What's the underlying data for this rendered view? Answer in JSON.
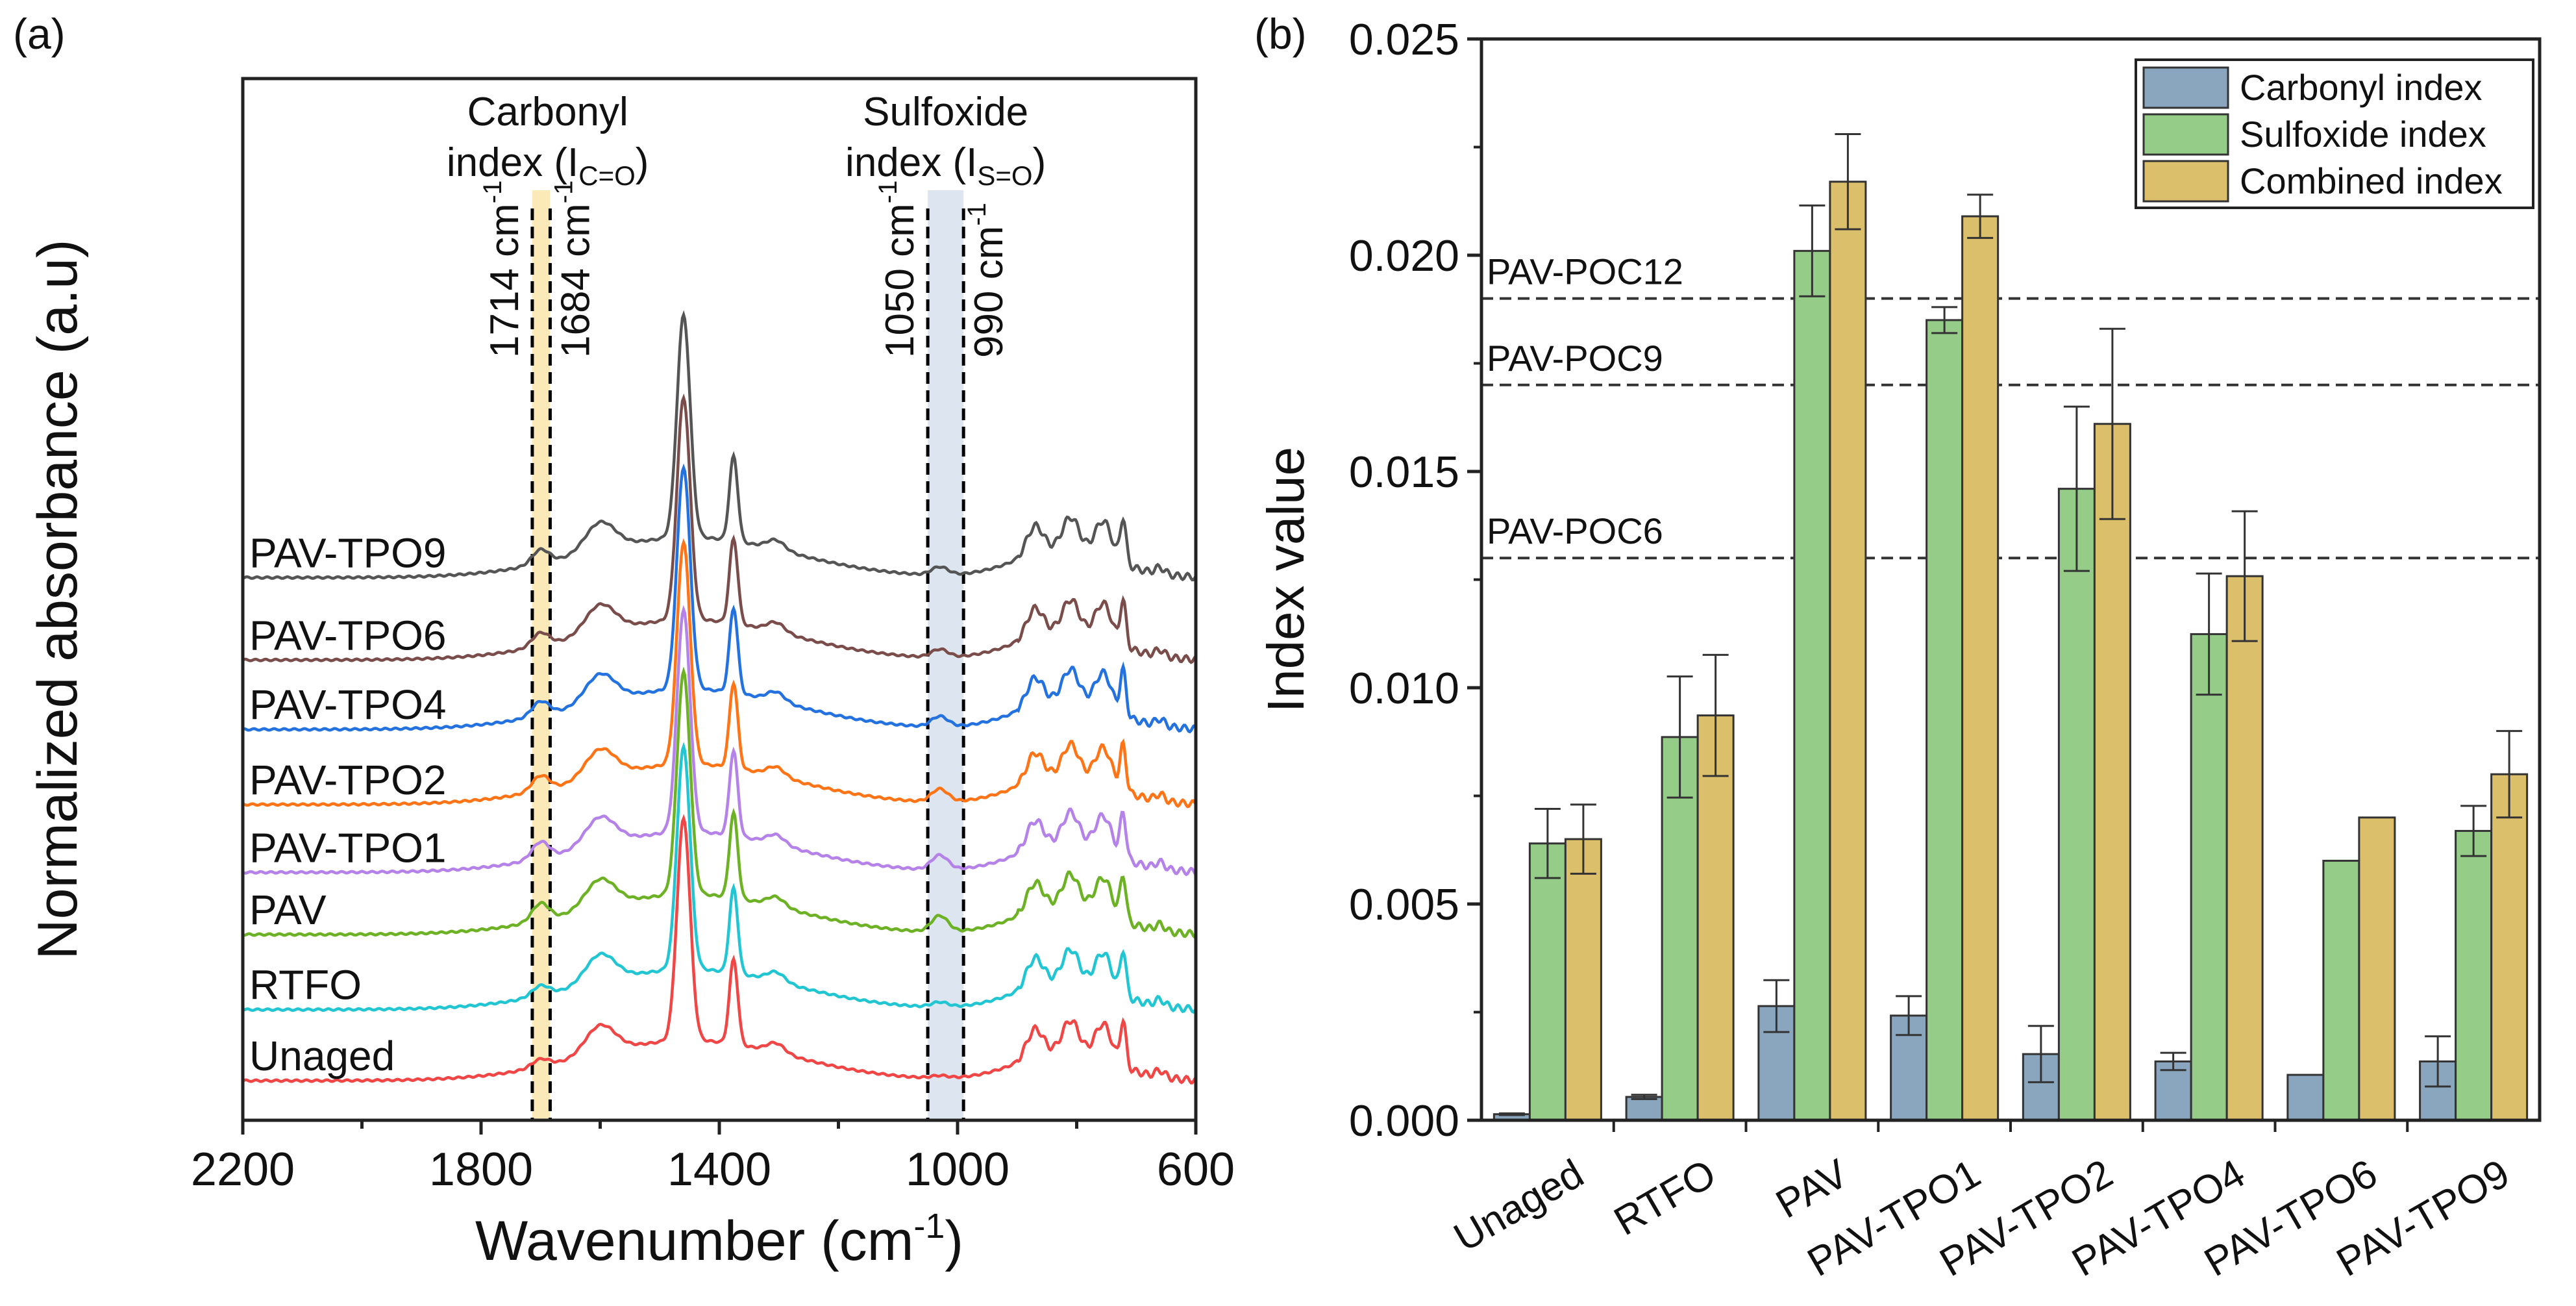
{
  "chart_data": [
    {
      "panel": "(a)",
      "type": "line",
      "xlabel": "Wavenumber (cm",
      "xlabel_sup": "-1",
      "xlabel_end": ")",
      "ylabel": "Normalized absorbance (a.u)",
      "xlim": [
        2200,
        600
      ],
      "ylim": [
        0,
        12.9
      ],
      "xticks": [
        2200,
        1800,
        1400,
        1000,
        600
      ],
      "xminor": [
        2000,
        1600,
        1200,
        800
      ],
      "bands": [
        {
          "name": "Carbonyl",
          "title1": "Carbonyl",
          "title2": "index (I",
          "sub": "C=O",
          "from": 1714,
          "to": 1684,
          "color": "#fbe9b8",
          "lines": [
            {
              "x": 1714,
              "label": "1714 cm",
              "sup": "-1"
            },
            {
              "x": 1684,
              "label": "1684 cm",
              "sup": "-1"
            }
          ]
        },
        {
          "name": "Sulfoxide",
          "title1": "Sulfoxide",
          "title2": "index (I",
          "sub": "S=O",
          "from": 1050,
          "to": 990,
          "color": "#dde6f0",
          "lines": [
            {
              "x": 1050,
              "label": "1050 cm",
              "sup": "-1"
            },
            {
              "x": 990,
              "label": "990 cm",
              "sup": "-1"
            }
          ]
        }
      ],
      "base_peaks": [
        [
          1700,
          0.1,
          15
        ],
        [
          1600,
          0.35,
          25
        ],
        [
          1460,
          2.75,
          11
        ],
        [
          1376,
          1.05,
          7
        ],
        [
          1305,
          0.12,
          15
        ],
        [
          870,
          0.35,
          14
        ],
        [
          810,
          0.4,
          14
        ],
        [
          755,
          0.45,
          14
        ],
        [
          722,
          0.55,
          5
        ],
        [
          660,
          0.08,
          8
        ],
        [
          1450,
          0.5,
          170
        ],
        [
          820,
          0.35,
          80
        ]
      ],
      "series": [
        {
          "name": "Unaged",
          "offset": 0.49,
          "carbonyl": 0.0,
          "sulfoxide": 0.03,
          "color": "#f04646"
        },
        {
          "name": "RTFO",
          "offset": 1.37,
          "carbonyl": 0.03,
          "sulfoxide": 0.06,
          "color": "#22c6d2"
        },
        {
          "name": "PAV",
          "offset": 2.3,
          "carbonyl": 0.12,
          "sulfoxide": 0.2,
          "color": "#6cb224"
        },
        {
          "name": "PAV-TPO1",
          "offset": 3.07,
          "carbonyl": 0.11,
          "sulfoxide": 0.18,
          "color": "#b482e8"
        },
        {
          "name": "PAV-TPO2",
          "offset": 3.91,
          "carbonyl": 0.09,
          "sulfoxide": 0.16,
          "color": "#ff7416"
        },
        {
          "name": "PAV-TPO4",
          "offset": 4.84,
          "carbonyl": 0.08,
          "sulfoxide": 0.13,
          "color": "#2472e0"
        },
        {
          "name": "PAV-TPO6",
          "offset": 5.7,
          "carbonyl": 0.07,
          "sulfoxide": 0.1,
          "color": "#7a4c4a"
        },
        {
          "name": "PAV-TPO9",
          "offset": 6.72,
          "carbonyl": 0.08,
          "sulfoxide": 0.1,
          "color": "#555555"
        }
      ]
    },
    {
      "panel": "(b)",
      "type": "bar",
      "xlabel": "",
      "ylabel": "Index value",
      "ylim": [
        0,
        0.025
      ],
      "yticks": [
        "0.000",
        "0.005",
        "0.010",
        "0.015",
        "0.020",
        "0.025"
      ],
      "categories": [
        "Unaged",
        "RTFO",
        "PAV",
        "PAV-TPO1",
        "PAV-TPO2",
        "PAV-TPO4",
        "PAV-TPO6",
        "PAV-TPO9"
      ],
      "series": [
        {
          "name": "Carbonyl index",
          "color": "#8aa6bf",
          "values": [
            0.00014,
            0.00054,
            0.00264,
            0.00242,
            0.00153,
            0.00136,
            0.00105,
            0.00136
          ],
          "errors": [
            2e-05,
            5e-05,
            0.0006,
            0.00045,
            0.00065,
            0.0002,
            0,
            0.00058
          ]
        },
        {
          "name": "Sulfoxide index",
          "color": "#94cc88",
          "values": [
            0.0064,
            0.00886,
            0.0201,
            0.0185,
            0.0146,
            0.01124,
            0.006,
            0.00669
          ],
          "errors": [
            0.0008,
            0.0014,
            0.00105,
            0.0003,
            0.0019,
            0.0014,
            0,
            0.00058
          ]
        },
        {
          "name": "Combined index",
          "color": "#dcbf6a",
          "values": [
            0.0065,
            0.00936,
            0.0217,
            0.0209,
            0.0161,
            0.01258,
            0.007,
            0.008
          ],
          "errors": [
            0.0008,
            0.0014,
            0.0011,
            0.0005,
            0.0022,
            0.0015,
            0,
            0.001
          ]
        }
      ],
      "reference_lines": [
        {
          "label": "PAV-POC12",
          "value": 0.019
        },
        {
          "label": "PAV-POC9",
          "value": 0.017
        },
        {
          "label": "PAV-POC6",
          "value": 0.013
        }
      ],
      "legend": "top-right"
    }
  ]
}
